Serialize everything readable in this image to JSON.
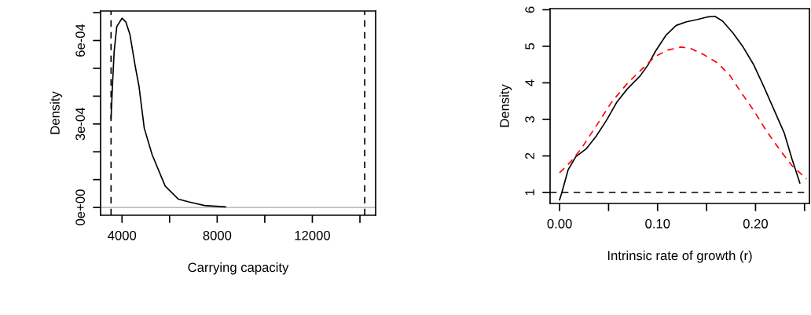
{
  "chart_data": [
    {
      "type": "line",
      "xlabel": "Carrying capacity",
      "ylabel": "Density",
      "xlim": [
        3100,
        14660
      ],
      "ylim": [
        -2.8e-05,
        0.000706
      ],
      "xticks": [
        4000,
        {
          "value": 6000,
          "label": null
        },
        8000,
        {
          "value": 10000,
          "label": null
        },
        12000,
        {
          "value": 14000,
          "label": null
        }
      ],
      "yticks": [
        {
          "value": 0,
          "label": "0e+00"
        },
        {
          "value": 0.0001,
          "label": null
        },
        {
          "value": 0.0002,
          "label": null
        },
        {
          "value": 0.0003,
          "label": "3e-04"
        },
        {
          "value": 0.0004,
          "label": null
        },
        {
          "value": 0.0005,
          "label": null
        },
        {
          "value": 0.0006,
          "label": "6e-04"
        },
        {
          "value": 0.0007,
          "label": null
        }
      ],
      "grid": false,
      "legend": false,
      "series": [
        {
          "color": "#000000",
          "x": [
            3540,
            3600,
            3670,
            3780,
            4000,
            4165,
            4330,
            4550,
            4715,
            4935,
            5265,
            5815,
            6365,
            6805,
            7465,
            8345
          ],
          "values": [
            0.00032,
            0.00044,
            0.00056,
            0.00065,
            0.00068,
            0.000666,
            0.000623,
            0.00051,
            0.000435,
            0.000285,
            0.00019,
            7.7e-05,
            3e-05,
            2e-05,
            7e-06,
            2e-06
          ]
        }
      ],
      "ref_lines": [
        {
          "axis": "x",
          "value": 3540,
          "color": "#000000",
          "line_style": "dashed"
        },
        {
          "axis": "x",
          "value": 14200,
          "color": "#000000",
          "line_style": "dashed"
        },
        {
          "axis": "y",
          "value": 0,
          "color": "#bebebe",
          "line_style": "solid"
        }
      ]
    },
    {
      "type": "line",
      "xlabel": "Intrinsic rate of growth (r)",
      "ylabel": "Density",
      "xlim": [
        -0.0097,
        0.255
      ],
      "ylim": [
        0.7,
        6.03
      ],
      "xticks": [
        {
          "value": 0,
          "label": "0.00"
        },
        {
          "value": 0.05,
          "label": null
        },
        {
          "value": 0.1,
          "label": "0.10"
        },
        {
          "value": 0.15,
          "label": null
        },
        {
          "value": 0.2,
          "label": "0.20"
        },
        {
          "value": 0.25,
          "label": null
        }
      ],
      "yticks": [
        1,
        2,
        3,
        4,
        5,
        6
      ],
      "grid": false,
      "legend": false,
      "series": [
        {
          "color": "#000000",
          "line_style": "solid",
          "x": [
            0,
            0.0021,
            0.0087,
            0.0166,
            0.027,
            0.0376,
            0.048,
            0.0586,
            0.069,
            0.0822,
            0.09,
            0.098,
            0.1085,
            0.119,
            0.1295,
            0.14,
            0.1505,
            0.1584,
            0.1663,
            0.1768,
            0.1873,
            0.1978,
            0.2084,
            0.2189,
            0.2294,
            0.2373,
            0.2452
          ],
          "values": [
            0.8,
            0.98,
            1.62,
            1.98,
            2.19,
            2.55,
            2.98,
            3.48,
            3.83,
            4.19,
            4.48,
            4.87,
            5.3,
            5.57,
            5.67,
            5.73,
            5.8,
            5.82,
            5.69,
            5.37,
            4.98,
            4.51,
            3.9,
            3.26,
            2.62,
            1.91,
            1.26
          ]
        },
        {
          "color": "#ff0000",
          "line_style": "dashed",
          "x": [
            0,
            0.0113,
            0.0218,
            0.0376,
            0.0533,
            0.069,
            0.0849,
            0.098,
            0.111,
            0.1243,
            0.1348,
            0.1479,
            0.161,
            0.1742,
            0.1847,
            0.1978,
            0.211,
            0.2241,
            0.2373,
            0.252
          ],
          "values": [
            1.54,
            1.84,
            2.19,
            2.83,
            3.48,
            3.98,
            4.4,
            4.73,
            4.9,
            4.98,
            4.93,
            4.76,
            4.55,
            4.19,
            3.76,
            3.26,
            2.69,
            2.19,
            1.73,
            1.37
          ]
        }
      ],
      "ref_lines": [
        {
          "axis": "y",
          "value": 1,
          "color": "#000000",
          "line_style": "dashed"
        }
      ]
    }
  ]
}
